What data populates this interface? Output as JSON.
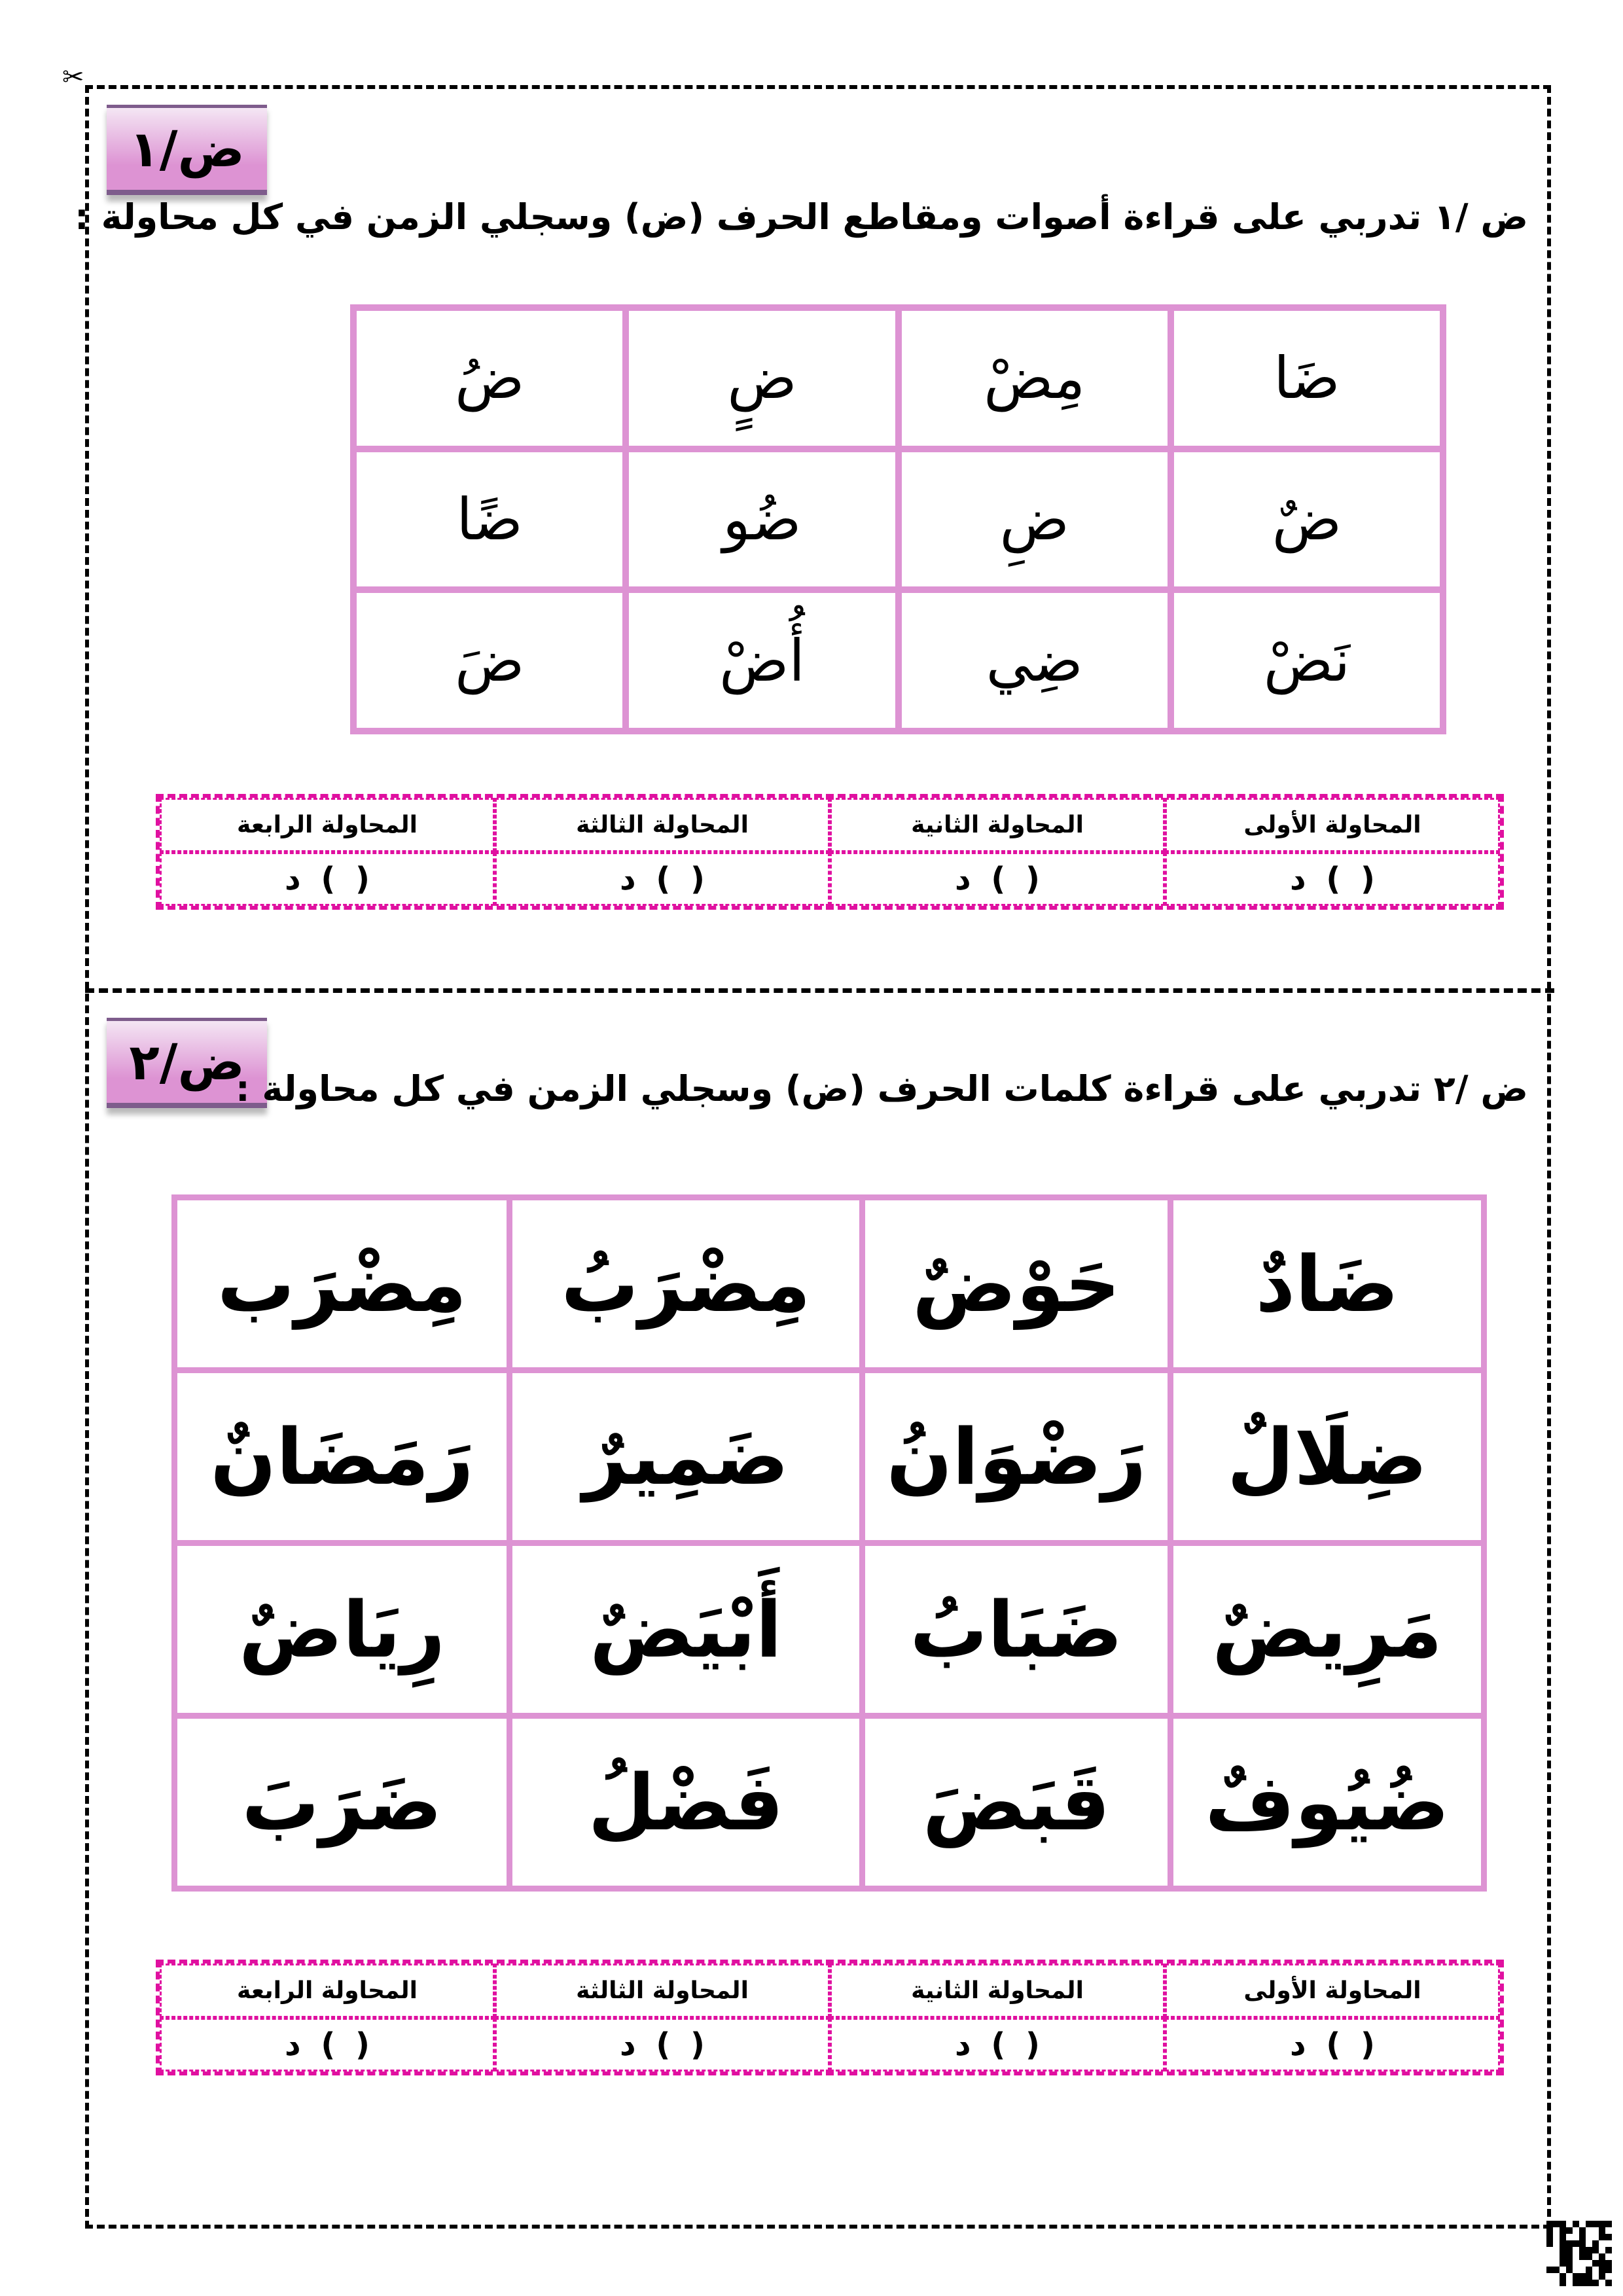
{
  "section1": {
    "badge": "ض/١",
    "title": "ض /١ تدربي على قراءة أصوات ومقاطع الحرف (ض) وسجلي الزمن في كل محاولة :",
    "rows": [
      [
        "ضَا",
        "مِضْ",
        "ضٍ",
        "ضُ"
      ],
      [
        "ضٌ",
        "ضِ",
        "ضُو",
        "ضًا"
      ],
      [
        "نَضْ",
        "ضِي",
        "أُضْ",
        "ضَ"
      ]
    ],
    "timing": {
      "headers": [
        "المحاولة الأولى",
        "المحاولة الثانية",
        "المحاولة الثالثة",
        "المحاولة الرابعة"
      ],
      "values": [
        "(   ) د",
        "(   ) د",
        "(   ) د",
        "(   ) د"
      ]
    }
  },
  "section2": {
    "badge": "ض/٢",
    "title": "ض /٢ تدربي على قراءة كلمات الحرف (ض) وسجلي الزمن في كل محاولة :",
    "rows": [
      [
        "ضَادٌ",
        "حَوْضٌ",
        "مِضْرَبُ",
        "مِضْرَب"
      ],
      [
        "ضِلَالٌ",
        "رَضْوَانُ",
        "ضَمِيرٌ",
        "رَمَضَانٌ"
      ],
      [
        "مَرِيضٌ",
        "ضَبَابُ",
        "أَبْيَضٌ",
        "رِيَاضٌ"
      ],
      [
        "ضُيُوفٌ",
        "قَبَضَ",
        "فَضْلُ",
        "ضَرَبَ"
      ]
    ],
    "timing": {
      "headers": [
        "المحاولة الأولى",
        "المحاولة الثانية",
        "المحاولة الثالثة",
        "المحاولة الرابعة"
      ],
      "values": [
        "(   ) د",
        "(   ) د",
        "(   ) د",
        "(   ) د"
      ]
    }
  },
  "colors": {
    "table_border": "#dd93d3",
    "timing_border": "#e010a0",
    "badge": "#dd93d3"
  },
  "icons": {
    "cut_line": "scissors-icon",
    "corner": "qr-code-icon"
  }
}
